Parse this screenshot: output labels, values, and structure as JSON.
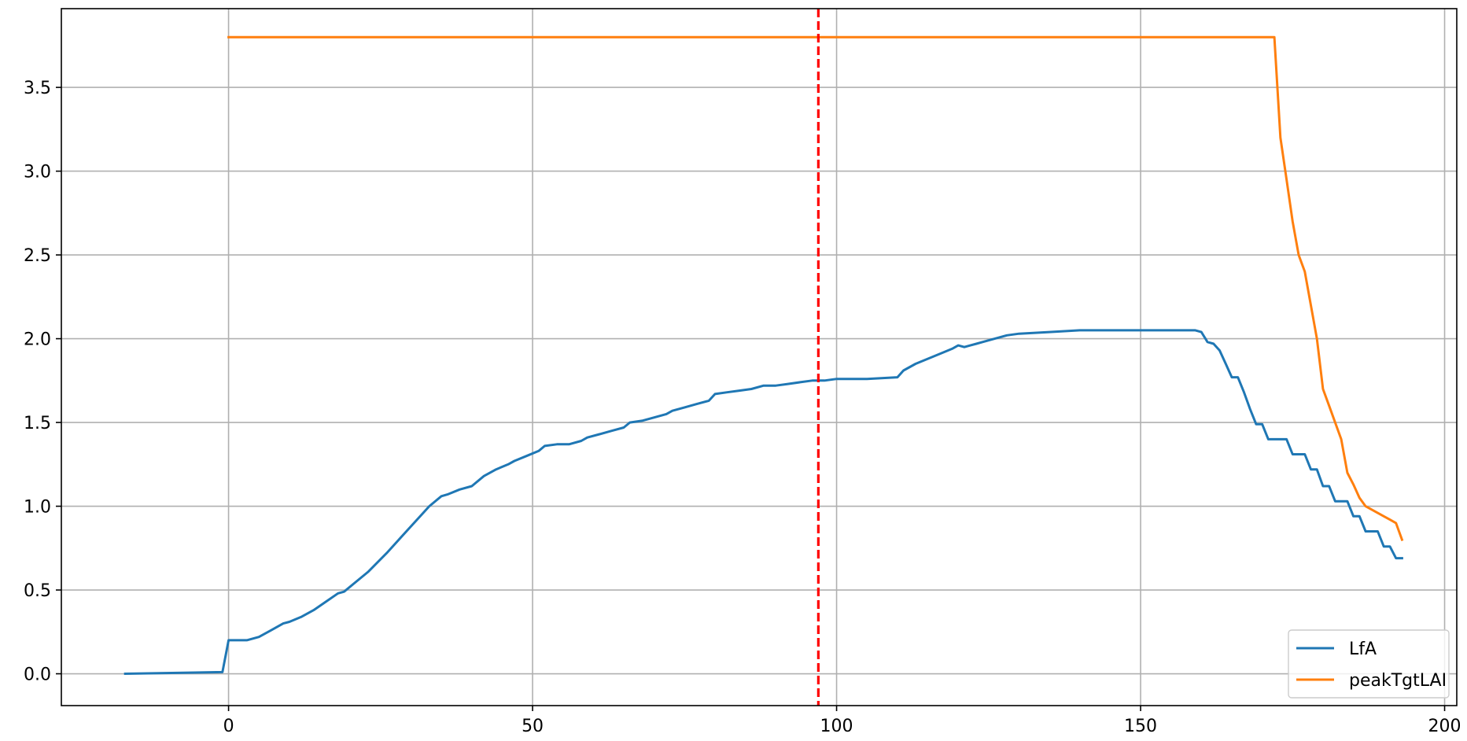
{
  "chart_data": {
    "type": "line",
    "title": "",
    "xlabel": "",
    "ylabel": "",
    "xlim": [
      -27.5,
      202
    ],
    "ylim": [
      -0.19,
      3.97
    ],
    "xticks": [
      0,
      50,
      100,
      150,
      200
    ],
    "xtick_labels": [
      "0",
      "50",
      "100",
      "150",
      "200"
    ],
    "yticks": [
      0.0,
      0.5,
      1.0,
      1.5,
      2.0,
      2.5,
      3.0,
      3.5
    ],
    "ytick_labels": [
      "0.0",
      "0.5",
      "1.0",
      "1.5",
      "2.0",
      "2.5",
      "3.0",
      "3.5"
    ],
    "grid": true,
    "legend_position": "lower-right",
    "vline": {
      "x": 97,
      "color": "#ff0000",
      "style": "dashed"
    },
    "series": [
      {
        "name": "LfA",
        "color": "#1f77b4",
        "x": [
          -17,
          -1,
          0,
          3,
          5,
          7,
          9,
          10,
          12,
          14,
          16,
          18,
          19,
          21,
          23,
          26,
          28,
          29,
          31,
          33,
          35,
          36,
          38,
          40,
          42,
          44,
          46,
          47,
          49,
          51,
          52,
          54,
          56,
          58,
          59,
          61,
          63,
          65,
          66,
          68,
          70,
          72,
          73,
          75,
          77,
          79,
          80,
          82,
          84,
          86,
          88,
          90,
          92,
          94,
          96,
          98,
          100,
          105,
          110,
          111,
          113,
          115,
          117,
          119,
          120,
          121,
          122,
          123,
          124,
          126,
          128,
          130,
          135,
          140,
          145,
          150,
          155,
          159,
          160,
          161,
          162,
          163,
          164,
          165,
          166,
          167,
          168,
          169,
          170,
          171,
          172,
          173,
          174,
          175,
          176,
          177,
          178,
          179,
          180,
          181,
          182,
          183,
          184,
          185,
          186,
          187,
          188,
          189,
          190,
          191,
          192,
          193
        ],
        "y": [
          0.0,
          0.01,
          0.2,
          0.2,
          0.22,
          0.26,
          0.3,
          0.31,
          0.34,
          0.38,
          0.43,
          0.48,
          0.49,
          0.55,
          0.61,
          0.72,
          0.8,
          0.84,
          0.92,
          1.0,
          1.06,
          1.07,
          1.1,
          1.12,
          1.18,
          1.22,
          1.25,
          1.27,
          1.3,
          1.33,
          1.36,
          1.37,
          1.37,
          1.39,
          1.41,
          1.43,
          1.45,
          1.47,
          1.5,
          1.51,
          1.53,
          1.55,
          1.57,
          1.59,
          1.61,
          1.63,
          1.67,
          1.68,
          1.69,
          1.7,
          1.72,
          1.72,
          1.73,
          1.74,
          1.75,
          1.75,
          1.76,
          1.76,
          1.77,
          1.81,
          1.85,
          1.88,
          1.91,
          1.94,
          1.96,
          1.95,
          1.96,
          1.97,
          1.98,
          2.0,
          2.02,
          2.03,
          2.04,
          2.05,
          2.05,
          2.05,
          2.05,
          2.05,
          2.04,
          1.98,
          1.97,
          1.93,
          1.85,
          1.77,
          1.77,
          1.68,
          1.58,
          1.49,
          1.49,
          1.4,
          1.4,
          1.4,
          1.4,
          1.31,
          1.31,
          1.31,
          1.22,
          1.22,
          1.12,
          1.12,
          1.03,
          1.03,
          1.03,
          0.94,
          0.94,
          0.85,
          0.85,
          0.85,
          0.76,
          0.76,
          0.69,
          0.69
        ]
      },
      {
        "name": "peakTgtLAI",
        "color": "#ff7f0e",
        "x": [
          0,
          172,
          173,
          174,
          175,
          176,
          177,
          178,
          179,
          180,
          181,
          182,
          183,
          184,
          185,
          186,
          187,
          188,
          189,
          190,
          191,
          192,
          193
        ],
        "y": [
          3.8,
          3.8,
          3.2,
          2.95,
          2.7,
          2.5,
          2.4,
          2.2,
          2.0,
          1.7,
          1.6,
          1.5,
          1.4,
          1.2,
          1.13,
          1.05,
          1.0,
          0.98,
          0.96,
          0.94,
          0.92,
          0.9,
          0.8
        ]
      }
    ]
  }
}
